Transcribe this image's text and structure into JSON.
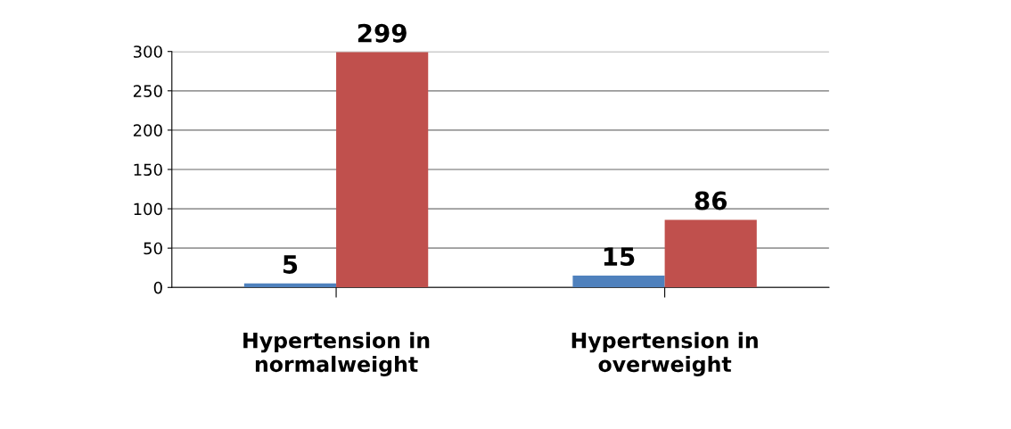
{
  "chart_data": {
    "type": "bar",
    "categories": [
      "Hypertension in\nnormalweight",
      "Hypertension in\noverweight"
    ],
    "series": [
      {
        "color": "#4f81bd",
        "values": [
          5,
          15
        ]
      },
      {
        "color": "#c0504d",
        "values": [
          299,
          86
        ]
      }
    ],
    "ylim": [
      0,
      300
    ],
    "yticks": [
      0,
      50,
      100,
      150,
      200,
      250,
      300
    ],
    "grid": "y",
    "data_labels": true,
    "legend": false
  }
}
